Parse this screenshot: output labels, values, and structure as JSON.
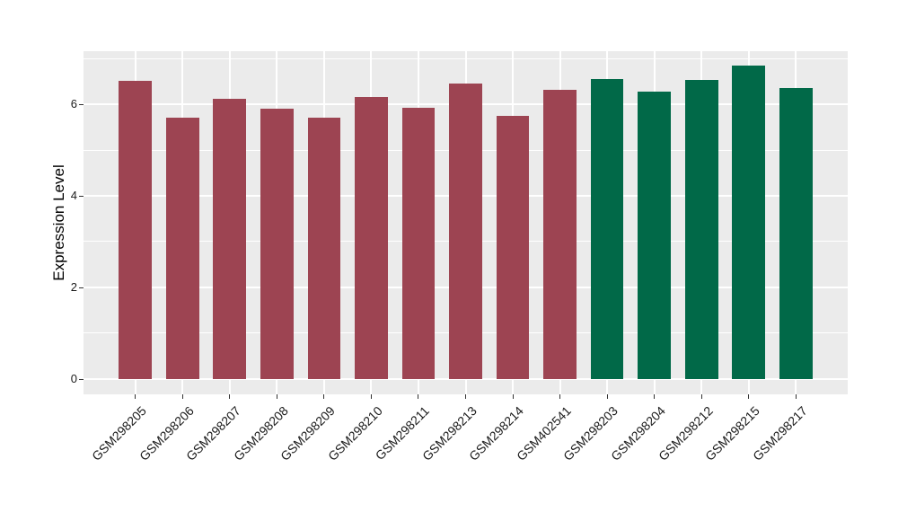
{
  "chart_data": {
    "type": "bar",
    "title": "",
    "xlabel": "",
    "ylabel": "Expression Level",
    "categories": [
      "GSM298205",
      "GSM298206",
      "GSM298207",
      "GSM298208",
      "GSM298209",
      "GSM298210",
      "GSM298211",
      "GSM298213",
      "GSM298214",
      "GSM402541",
      "GSM298203",
      "GSM298204",
      "GSM298212",
      "GSM298215",
      "GSM298217"
    ],
    "values": [
      6.51,
      5.71,
      6.12,
      5.9,
      5.71,
      6.16,
      5.93,
      6.45,
      5.75,
      6.31,
      6.55,
      6.27,
      6.53,
      6.84,
      6.35
    ],
    "groups": [
      "group1",
      "group1",
      "group1",
      "group1",
      "group1",
      "group1",
      "group1",
      "group1",
      "group1",
      "group1",
      "group2",
      "group2",
      "group2",
      "group2",
      "group2"
    ],
    "group_colors": {
      "group1": "#9D4452",
      "group2": "#016948"
    },
    "yticks": [
      0,
      2,
      4,
      6
    ],
    "yticks_minor": [
      1,
      3,
      5,
      7
    ],
    "ylim": [
      0,
      7.16
    ],
    "grid": true,
    "legend_position": "none",
    "panel_bg": "#EBEBEB",
    "grid_color": "#FFFFFF",
    "tick_color": "#333333",
    "axis_text_color": "#1A1A1A"
  }
}
